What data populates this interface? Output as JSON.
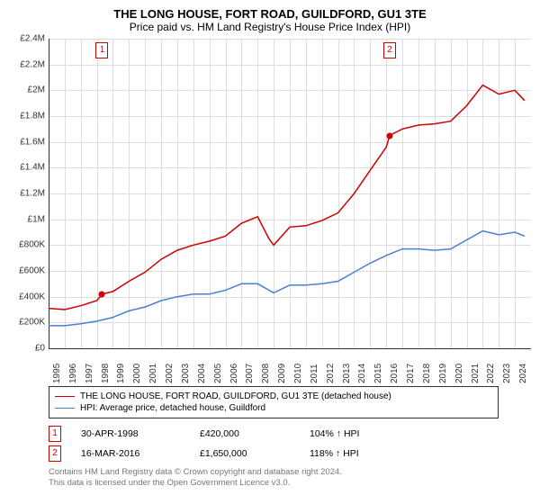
{
  "title": "THE LONG HOUSE, FORT ROAD, GUILDFORD, GU1 3TE",
  "subtitle": "Price paid vs. HM Land Registry's House Price Index (HPI)",
  "chart": {
    "type": "line",
    "background_color": "#ffffff",
    "grid_color": "#dddddd",
    "axis_color": "#333333",
    "x_range": [
      1995,
      2025
    ],
    "y_range": [
      0,
      2400000
    ],
    "y_tick_step": 200000,
    "y_ticks": [
      0,
      200000,
      400000,
      600000,
      800000,
      1000000,
      1200000,
      1400000,
      1600000,
      1800000,
      2000000,
      2200000,
      2400000
    ],
    "y_labels": [
      "£0",
      "£200K",
      "£400K",
      "£600K",
      "£800K",
      "£1M",
      "£1.2M",
      "£1.4M",
      "£1.6M",
      "£1.8M",
      "£2M",
      "£2.2M",
      "£2.4M"
    ],
    "x_ticks": [
      1995,
      1996,
      1997,
      1998,
      1999,
      2000,
      2001,
      2002,
      2003,
      2004,
      2005,
      2006,
      2007,
      2008,
      2009,
      2010,
      2011,
      2012,
      2013,
      2014,
      2015,
      2016,
      2017,
      2018,
      2019,
      2020,
      2021,
      2022,
      2023,
      2024
    ],
    "x_labels": [
      "1995",
      "1996",
      "1997",
      "1998",
      "1999",
      "2000",
      "2001",
      "2002",
      "2003",
      "2004",
      "2005",
      "2006",
      "2007",
      "2008",
      "2009",
      "2010",
      "2011",
      "2012",
      "2013",
      "2014",
      "2015",
      "2016",
      "2017",
      "2018",
      "2019",
      "2020",
      "2021",
      "2022",
      "2023",
      "2024"
    ],
    "tick_fontsize": 10,
    "series": [
      {
        "name": "THE LONG HOUSE, FORT ROAD, GUILDFORD, GU1 3TE (detached house)",
        "color": "#cc0000",
        "line_width": 1.5,
        "points": [
          [
            1995,
            310000
          ],
          [
            1996,
            300000
          ],
          [
            1997,
            330000
          ],
          [
            1998,
            370000
          ],
          [
            1998.33,
            420000
          ],
          [
            1999,
            440000
          ],
          [
            2000,
            520000
          ],
          [
            2001,
            590000
          ],
          [
            2002,
            690000
          ],
          [
            2003,
            760000
          ],
          [
            2004,
            800000
          ],
          [
            2005,
            830000
          ],
          [
            2006,
            870000
          ],
          [
            2007,
            970000
          ],
          [
            2008,
            1020000
          ],
          [
            2008.7,
            850000
          ],
          [
            2009,
            800000
          ],
          [
            2010,
            940000
          ],
          [
            2011,
            950000
          ],
          [
            2012,
            990000
          ],
          [
            2013,
            1050000
          ],
          [
            2014,
            1200000
          ],
          [
            2015,
            1380000
          ],
          [
            2016,
            1560000
          ],
          [
            2016.21,
            1650000
          ],
          [
            2017,
            1700000
          ],
          [
            2018,
            1730000
          ],
          [
            2019,
            1740000
          ],
          [
            2020,
            1760000
          ],
          [
            2021,
            1880000
          ],
          [
            2022,
            2040000
          ],
          [
            2023,
            1970000
          ],
          [
            2024,
            2000000
          ],
          [
            2024.6,
            1920000
          ]
        ]
      },
      {
        "name": "HPI: Average price, detached house, Guildford",
        "color": "#4a80d4",
        "line_width": 1.5,
        "points": [
          [
            1995,
            175000
          ],
          [
            1996,
            175000
          ],
          [
            1997,
            190000
          ],
          [
            1998,
            210000
          ],
          [
            1999,
            240000
          ],
          [
            2000,
            290000
          ],
          [
            2001,
            320000
          ],
          [
            2002,
            370000
          ],
          [
            2003,
            400000
          ],
          [
            2004,
            420000
          ],
          [
            2005,
            420000
          ],
          [
            2006,
            450000
          ],
          [
            2007,
            500000
          ],
          [
            2008,
            500000
          ],
          [
            2009,
            430000
          ],
          [
            2010,
            490000
          ],
          [
            2011,
            490000
          ],
          [
            2012,
            500000
          ],
          [
            2013,
            520000
          ],
          [
            2014,
            590000
          ],
          [
            2015,
            660000
          ],
          [
            2016,
            720000
          ],
          [
            2017,
            770000
          ],
          [
            2018,
            770000
          ],
          [
            2019,
            760000
          ],
          [
            2020,
            770000
          ],
          [
            2021,
            840000
          ],
          [
            2022,
            910000
          ],
          [
            2023,
            880000
          ],
          [
            2024,
            900000
          ],
          [
            2024.6,
            870000
          ]
        ]
      }
    ],
    "markers": [
      {
        "label": "1",
        "x": 1998.33,
        "y": 420000
      },
      {
        "label": "2",
        "x": 2016.21,
        "y": 1650000
      }
    ]
  },
  "legend": {
    "entries": [
      {
        "label": "THE LONG HOUSE, FORT ROAD, GUILDFORD, GU1 3TE (detached house)",
        "color": "#cc0000"
      },
      {
        "label": "HPI: Average price, detached house, Guildford",
        "color": "#4a80d4"
      }
    ]
  },
  "sales": [
    {
      "num": "1",
      "date": "30-APR-1998",
      "price": "£420,000",
      "relation": "104% ↑ HPI"
    },
    {
      "num": "2",
      "date": "16-MAR-2016",
      "price": "£1,650,000",
      "relation": "118% ↑ HPI"
    }
  ],
  "footer_line1": "Contains HM Land Registry data © Crown copyright and database right 2024.",
  "footer_line2": "This data is licensed under the Open Government Licence v3.0."
}
